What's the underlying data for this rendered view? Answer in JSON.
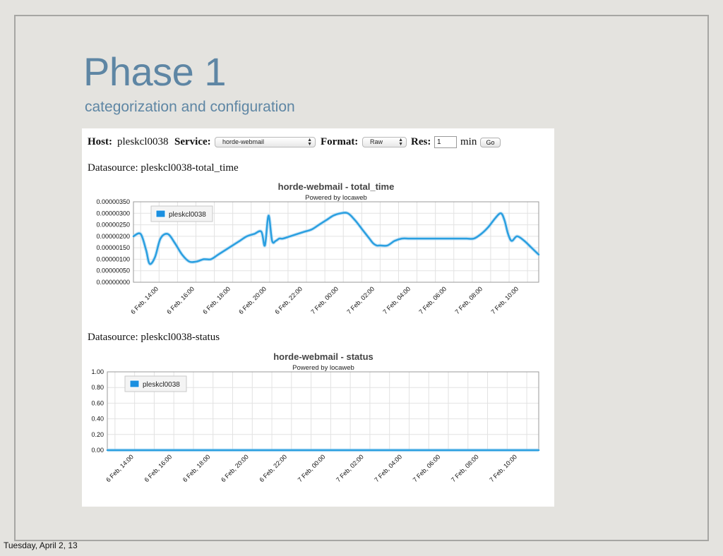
{
  "slide": {
    "title": "Phase 1",
    "subtitle": "categorization and configuration",
    "footer": "Tuesday, April 2, 13"
  },
  "toolbar": {
    "host_label": "Host:",
    "host_value": "pleskcl0038",
    "service_label": "Service:",
    "service_value": "horde-webmail",
    "format_label": "Format:",
    "format_value": "Raw",
    "res_label": "Res:",
    "res_value": "1",
    "res_unit": "min",
    "go_label": "Go"
  },
  "icons": {
    "select_arrows": "updown-chevron-icon",
    "legend_swatch": "legend-swatch-icon"
  },
  "colors": {
    "series": "#2a9fe0",
    "swatch": "#1a8fe0",
    "title": "#5e86a4",
    "background": "#e4e3df"
  },
  "chart_data": [
    {
      "type": "line",
      "datasource_label": "Datasource: pleskcl0038-total_time",
      "title": "horde-webmail - total_time",
      "subtitle": "Powered by locaweb",
      "x_tick_labels": [
        "6 Feb, 14:00",
        "6 Feb, 16:00",
        "6 Feb, 18:00",
        "6 Feb, 20:00",
        "6 Feb, 22:00",
        "7 Feb, 00:00",
        "7 Feb, 02:00",
        "7 Feb, 04:00",
        "7 Feb, 06:00",
        "7 Feb, 08:00",
        "7 Feb, 10:00"
      ],
      "x_range": [
        12.8,
        35.3
      ],
      "ylim": [
        0,
        3.5e-06
      ],
      "y_tick_labels": [
        "0.00000000",
        "0.00000050",
        "0.00000100",
        "0.00000150",
        "0.00000200",
        "0.00000250",
        "0.00000300",
        "0.00000350"
      ],
      "grid": true,
      "legend_position": "top-left",
      "series": [
        {
          "name": "pleskcl0038",
          "color": "#2a9fe0",
          "x": [
            12.8,
            13.2,
            13.5,
            13.7,
            14.0,
            14.3,
            14.7,
            15.1,
            15.5,
            15.9,
            16.3,
            16.7,
            17.1,
            17.5,
            17.9,
            18.3,
            18.7,
            19.1,
            19.5,
            19.9,
            20.1,
            20.3,
            20.5,
            20.7,
            20.9,
            21.1,
            21.5,
            21.9,
            22.3,
            22.7,
            23.1,
            23.5,
            23.9,
            24.3,
            24.7,
            25.1,
            25.5,
            25.9,
            26.1,
            26.3,
            26.5,
            26.9,
            27.3,
            27.7,
            28.1,
            28.5,
            28.9,
            29.3,
            29.7,
            30.1,
            30.5,
            30.9,
            31.3,
            31.7,
            32.1,
            32.5,
            32.9,
            33.2,
            33.4,
            33.6,
            33.8,
            34.1,
            34.5,
            34.9,
            35.3
          ],
          "y": [
            2e-06,
            2.1e-06,
            1.4e-06,
            8e-07,
            1.1e-06,
            1.9e-06,
            2.1e-06,
            1.7e-06,
            1.2e-06,
            9e-07,
            9e-07,
            1e-06,
            1e-06,
            1.2e-06,
            1.4e-06,
            1.6e-06,
            1.8e-06,
            2e-06,
            2.1e-06,
            2.2e-06,
            1.6e-06,
            2.9e-06,
            1.8e-06,
            1.8e-06,
            1.9e-06,
            1.9e-06,
            2e-06,
            2.1e-06,
            2.2e-06,
            2.3e-06,
            2.5e-06,
            2.7e-06,
            2.9e-06,
            3e-06,
            3e-06,
            2.7e-06,
            2.3e-06,
            1.9e-06,
            1.7e-06,
            1.6e-06,
            1.6e-06,
            1.6e-06,
            1.8e-06,
            1.9e-06,
            1.9e-06,
            1.9e-06,
            1.9e-06,
            1.9e-06,
            1.9e-06,
            1.9e-06,
            1.9e-06,
            1.9e-06,
            1.9e-06,
            1.9e-06,
            2.1e-06,
            2.4e-06,
            2.8e-06,
            3e-06,
            2.7e-06,
            2.1e-06,
            1.8e-06,
            2e-06,
            1.8e-06,
            1.5e-06,
            1.2e-06
          ]
        }
      ]
    },
    {
      "type": "line",
      "datasource_label": "Datasource: pleskcl0038-status",
      "title": "horde-webmail - status",
      "subtitle": "Powered by locaweb",
      "x_tick_labels": [
        "6 Feb, 14:00",
        "6 Feb, 16:00",
        "6 Feb, 18:00",
        "6 Feb, 20:00",
        "6 Feb, 22:00",
        "7 Feb, 00:00",
        "7 Feb, 02:00",
        "7 Feb, 04:00",
        "7 Feb, 06:00",
        "7 Feb, 08:00",
        "7 Feb, 10:00"
      ],
      "x_range": [
        12.8,
        35.3
      ],
      "ylim": [
        0,
        1
      ],
      "y_tick_labels": [
        "0.00",
        "0.20",
        "0.40",
        "0.60",
        "0.80",
        "1.00"
      ],
      "grid": true,
      "legend_position": "top-left",
      "series": [
        {
          "name": "pleskcl0038",
          "color": "#2a9fe0",
          "x": [
            12.8,
            35.3
          ],
          "y": [
            0,
            0
          ]
        }
      ]
    }
  ]
}
